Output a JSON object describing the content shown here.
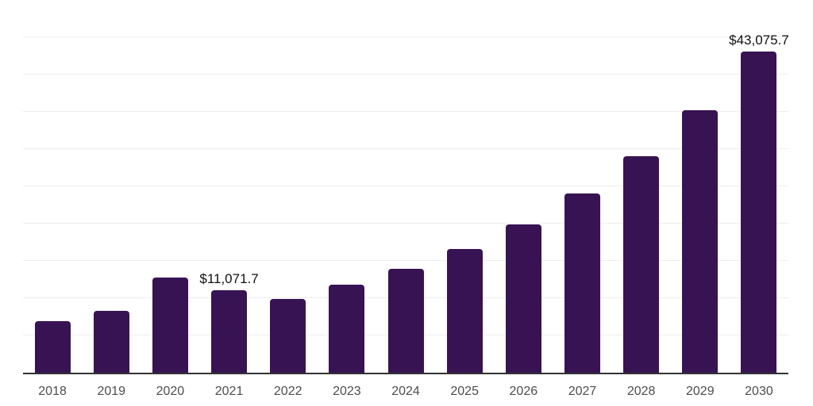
{
  "chart_data": {
    "type": "bar",
    "title": "",
    "categories": [
      "2018",
      "2019",
      "2020",
      "2021",
      "2022",
      "2023",
      "2024",
      "2025",
      "2026",
      "2027",
      "2028",
      "2029",
      "2030"
    ],
    "values": [
      6900,
      8270,
      12770,
      11071.7,
      9860,
      11780,
      13940,
      16560,
      19890,
      24010,
      29070,
      35180,
      43075.7
    ],
    "data_labels": {
      "2021": "$11,071.7",
      "2030": "$43,075.7"
    },
    "xlabel": "",
    "ylabel": "",
    "ylim": [
      0,
      50000
    ],
    "gridline_interval": 5000,
    "grid": "horizontal-only",
    "legend": "none",
    "y_axis_tick_labels": "none",
    "colors": {
      "bar": "#371353",
      "gridline": "#ededed",
      "axis_line": "#333333",
      "tick_label": "#4d4d4d",
      "data_label": "#111111",
      "background": "#ffffff"
    }
  }
}
